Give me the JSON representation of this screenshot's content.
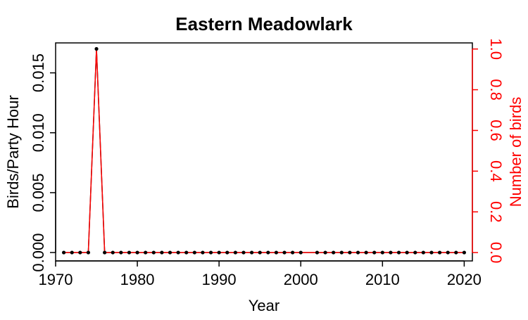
{
  "chart_data": {
    "type": "line",
    "title": "Eastern Meadowlark",
    "xlabel": "Year",
    "ylabel": "Birds/Party Hour",
    "ylabel_right": "Number of birds",
    "xlim": [
      1970,
      2021
    ],
    "ylim": [
      -0.0007,
      0.0175
    ],
    "ylim_right": [
      -0.041,
      1.03
    ],
    "x_ticks": [
      1970,
      1980,
      1990,
      2000,
      2010,
      2020
    ],
    "x_tick_labels": [
      "1970",
      "1980",
      "1990",
      "2000",
      "2010",
      "2020"
    ],
    "y_ticks": [
      0.0,
      0.005,
      0.01,
      0.015
    ],
    "y_tick_labels": [
      "0.000",
      "0.005",
      "0.010",
      "0.015"
    ],
    "y_right_ticks": [
      0.0,
      0.2,
      0.4,
      0.6,
      0.8,
      1.0
    ],
    "y_right_tick_labels": [
      "0.0",
      "0.2",
      "0.4",
      "0.6",
      "0.8",
      "1.0"
    ],
    "grid": false,
    "colors": {
      "primary": "#000000",
      "secondary": "#ff0000",
      "points": "#000000"
    },
    "series": [
      {
        "axis": "left",
        "x": [
          1971,
          1972,
          1973,
          1974,
          1975,
          1976,
          1977,
          1978,
          1979,
          1980,
          1981,
          1982,
          1983,
          1984,
          1985,
          1986,
          1987,
          1988,
          1989,
          1990,
          1991,
          1992,
          1993,
          1994,
          1995,
          1996,
          1997,
          1998,
          1999,
          2000,
          2002,
          2003,
          2004,
          2005,
          2006,
          2007,
          2008,
          2009,
          2010,
          2011,
          2012,
          2013,
          2014,
          2015,
          2016,
          2017,
          2018,
          2019,
          2020
        ],
        "values": [
          0,
          0,
          0,
          0,
          0.017,
          0,
          0,
          0,
          0,
          0,
          0,
          0,
          0,
          0,
          0,
          0,
          0,
          0,
          0,
          0,
          0,
          0,
          0,
          0,
          0,
          0,
          0,
          0,
          0,
          0,
          0,
          0,
          0,
          0,
          0,
          0,
          0,
          0,
          0,
          0,
          0,
          0,
          0,
          0,
          0,
          0,
          0,
          0,
          0
        ]
      },
      {
        "axis": "right",
        "x": [
          1971,
          1972,
          1973,
          1974,
          1975,
          1976,
          1977,
          1978,
          1979,
          1980,
          1981,
          1982,
          1983,
          1984,
          1985,
          1986,
          1987,
          1988,
          1989,
          1990,
          1991,
          1992,
          1993,
          1994,
          1995,
          1996,
          1997,
          1998,
          1999,
          2000,
          2002,
          2003,
          2004,
          2005,
          2006,
          2007,
          2008,
          2009,
          2010,
          2011,
          2012,
          2013,
          2014,
          2015,
          2016,
          2017,
          2018,
          2019,
          2020
        ],
        "values": [
          0,
          0,
          0,
          0,
          1,
          0,
          0,
          0,
          0,
          0,
          0,
          0,
          0,
          0,
          0,
          0,
          0,
          0,
          0,
          0,
          0,
          0,
          0,
          0,
          0,
          0,
          0,
          0,
          0,
          0,
          0,
          0,
          0,
          0,
          0,
          0,
          0,
          0,
          0,
          0,
          0,
          0,
          0,
          0,
          0,
          0,
          0,
          0,
          0
        ]
      }
    ]
  }
}
